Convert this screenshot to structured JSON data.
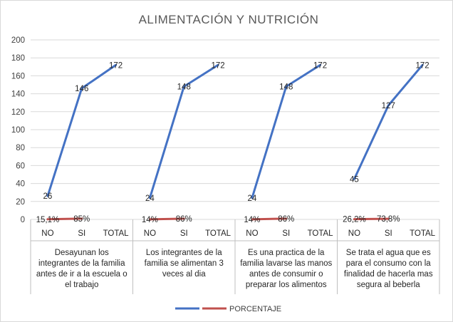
{
  "chart_data": {
    "type": "line",
    "title": "ALIMENTACIÓN Y NUTRICIÓN",
    "ylim": [
      0,
      200
    ],
    "yticks": [
      0,
      20,
      40,
      60,
      80,
      100,
      120,
      140,
      160,
      180,
      200
    ],
    "grid": true,
    "legend_position": "bottom",
    "groups": [
      {
        "label": "Desayunan los integrantes de la familia antes de ir a la escuela o el trabajo",
        "label_lines": [
          "Desayunan los",
          "integrantes de la familia",
          "antes de ir a la escuela o",
          "el trabajo"
        ],
        "categories": [
          "NO",
          "SI",
          "TOTAL"
        ]
      },
      {
        "label": "Los integrantes de la familia se alimentan 3 veces al dia",
        "label_lines": [
          "Los integrantes de la",
          "familia se alimentan 3",
          "veces al dia"
        ],
        "categories": [
          "NO",
          "SI",
          "TOTAL"
        ]
      },
      {
        "label": "Es una practica de la familia lavarse las manos antes de consumir o preparar los alimentos",
        "label_lines": [
          "Es una practica de la",
          "familia lavarse las manos",
          "antes de consumir o",
          "preparar los alimentos"
        ],
        "categories": [
          "NO",
          "SI",
          "TOTAL"
        ]
      },
      {
        "label": "Se trata el agua que es para el consumo con la finalidad de hacerla mas segura al beberla",
        "label_lines": [
          "Se trata el agua que es",
          "para el consumo con la",
          "finalidad de hacerla mas",
          "segura al beberla"
        ],
        "categories": [
          "NO",
          "SI",
          "TOTAL"
        ]
      }
    ],
    "series": [
      {
        "name": "",
        "color": "#4472c4",
        "values": [
          26,
          146,
          172,
          24,
          148,
          172,
          24,
          148,
          172,
          45,
          127,
          172
        ],
        "labels": [
          "26",
          "146",
          "172",
          "24",
          "148",
          "172",
          "24",
          "148",
          "172",
          "45",
          "127",
          "172"
        ]
      },
      {
        "name": "PORCENTAJE",
        "color": "#c0504d",
        "values": [
          0.151,
          0.85,
          null,
          0.14,
          0.86,
          null,
          0.14,
          0.86,
          null,
          0.262,
          0.738,
          null
        ],
        "labels": [
          "15,1%",
          "85%",
          "",
          "14%",
          "86%",
          "",
          "14%",
          "86%",
          "",
          "26,2%",
          "73,8%",
          ""
        ]
      }
    ]
  }
}
